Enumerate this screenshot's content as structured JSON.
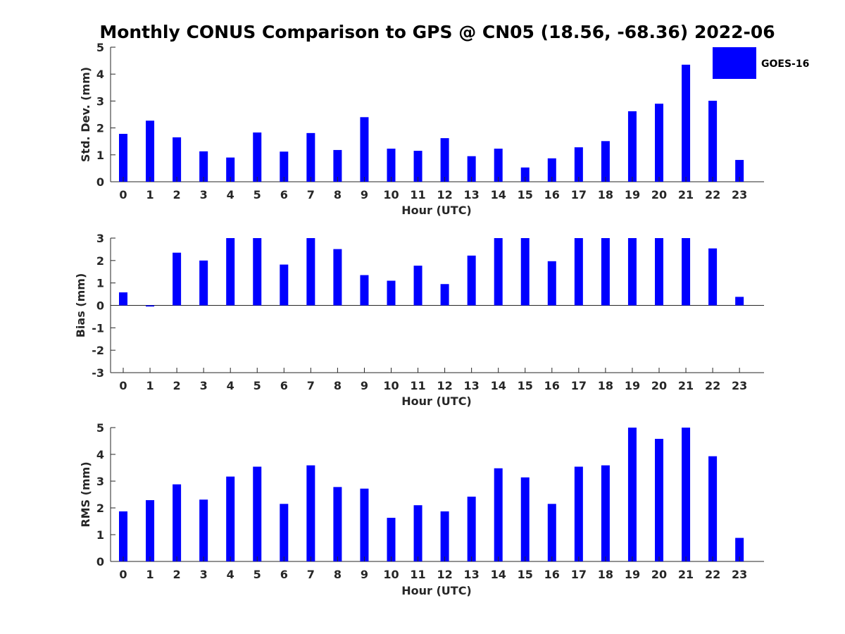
{
  "title": "Monthly CONUS Comparison to GPS @ CN05 (18.56, -68.36) 2022-06",
  "bar_color": "#0000ff",
  "legend_entry": "GOES-16",
  "chart_data": [
    {
      "type": "bar",
      "name": "std",
      "legend": "GOES-16",
      "xlabel": "Hour (UTC)",
      "ylabel": "Std. Dev. (mm)",
      "ylim": [
        0,
        5
      ],
      "yticks": [
        "0",
        "1",
        "2",
        "3",
        "4",
        "5"
      ],
      "categories": [
        "0",
        "1",
        "2",
        "3",
        "4",
        "5",
        "6",
        "7",
        "8",
        "9",
        "10",
        "11",
        "12",
        "13",
        "14",
        "15",
        "16",
        "17",
        "18",
        "19",
        "20",
        "21",
        "22",
        "23"
      ],
      "values": [
        1.78,
        2.27,
        1.65,
        1.13,
        0.9,
        1.83,
        1.12,
        1.81,
        1.18,
        2.4,
        1.23,
        1.15,
        1.62,
        0.95,
        1.23,
        0.53,
        0.87,
        1.28,
        1.51,
        2.62,
        2.9,
        4.35,
        3.01,
        0.81
      ]
    },
    {
      "type": "bar",
      "name": "bias",
      "legend": "GOES-16",
      "xlabel": "Hour (UTC)",
      "ylabel": "Bias (mm)",
      "ylim": [
        -3,
        3
      ],
      "yticks": [
        "-3",
        "-2",
        "-1",
        "0",
        "1",
        "2",
        "3"
      ],
      "categories": [
        "0",
        "1",
        "2",
        "3",
        "4",
        "5",
        "6",
        "7",
        "8",
        "9",
        "10",
        "11",
        "12",
        "13",
        "14",
        "15",
        "16",
        "17",
        "18",
        "19",
        "20",
        "21",
        "22",
        "23"
      ],
      "values": [
        0.58,
        -0.05,
        2.35,
        2.0,
        3.0,
        3.0,
        1.82,
        3.0,
        2.51,
        1.35,
        1.1,
        1.77,
        0.95,
        2.22,
        3.0,
        3.0,
        1.97,
        3.0,
        3.0,
        3.0,
        3.0,
        3.0,
        2.54,
        0.38
      ]
    },
    {
      "type": "bar",
      "name": "rms",
      "legend": "GOES-16",
      "xlabel": "Hour (UTC)",
      "ylabel": "RMS (mm)",
      "ylim": [
        0,
        5
      ],
      "yticks": [
        "0",
        "1",
        "2",
        "3",
        "4",
        "5"
      ],
      "categories": [
        "0",
        "1",
        "2",
        "3",
        "4",
        "5",
        "6",
        "7",
        "8",
        "9",
        "10",
        "11",
        "12",
        "13",
        "14",
        "15",
        "16",
        "17",
        "18",
        "19",
        "20",
        "21",
        "22",
        "23"
      ],
      "values": [
        1.87,
        2.29,
        2.88,
        2.31,
        3.17,
        3.54,
        2.15,
        3.59,
        2.78,
        2.72,
        1.63,
        2.1,
        1.87,
        2.42,
        3.48,
        3.14,
        2.15,
        3.54,
        3.59,
        5.0,
        4.58,
        5.0,
        3.93,
        0.88
      ]
    }
  ]
}
